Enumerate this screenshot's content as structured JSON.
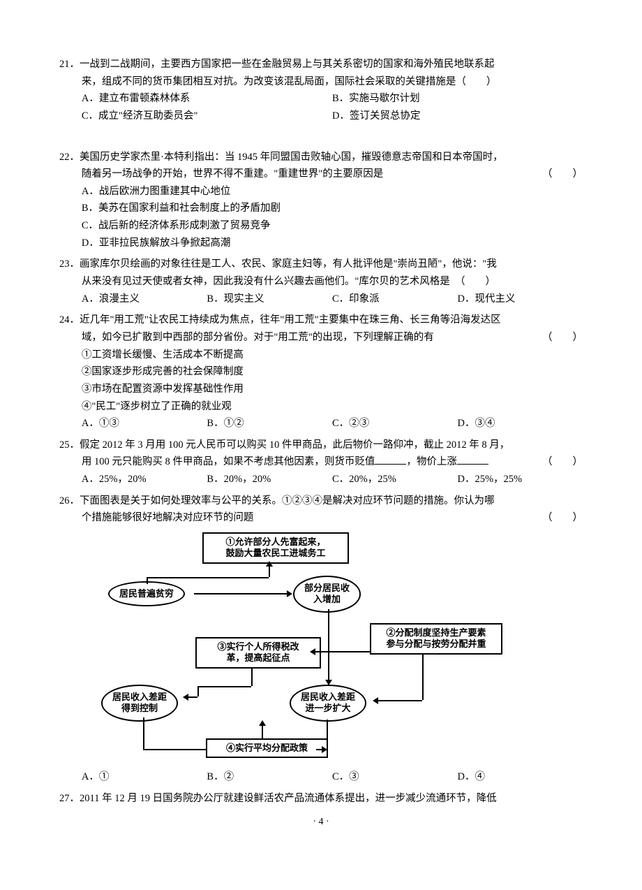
{
  "q21": {
    "num": "21．",
    "stem1": "一战到二战期间，主要西方国家把一些在金融贸易上与其关系密切的国家和海外殖民地联系起",
    "stem2": "来，组成不同的货币集团相互对抗。为改变该混乱局面，国际社会采取的关键措施是（　　）",
    "A": "A．建立布雷顿森林体系",
    "B": "B．实施马歇尔计划",
    "C": "C．成立\"经济互助委员会\"",
    "D": "D．签订关贸总协定"
  },
  "q22": {
    "num": "22．",
    "stem1": "美国历史学家杰里·本特利指出：当 1945 年同盟国击败轴心国，摧毁德意志帝国和日本帝国时，",
    "stem2": "随着另一场战争的开始，世界不得不重建。\"重建世界\"的主要原因是",
    "paren": "（　　）",
    "A": "A．战后欧洲力图重建其中心地位",
    "B": "B．美苏在国家利益和社会制度上的矛盾加剧",
    "C": "C．战后新的经济体系形成刺激了贸易竞争",
    "D": "D．亚非拉民族解放斗争掀起高潮"
  },
  "q23": {
    "num": "23．",
    "stem1": "画家库尔贝绘画的对象往往是工人、农民、家庭主妇等，有人批评他是\"崇尚丑陋\"，他说：\"我",
    "stem2": "从来没有见过天使或者女神，因此我没有什么兴趣去画他们。\"库尔贝的艺术风格是　（　　）",
    "A": "A．浪漫主义",
    "B": "B．现实主义",
    "C": "C．印象派",
    "D": "D．现代主义"
  },
  "q24": {
    "num": "24．",
    "stem1": "近几年\"用工荒\"让农民工持续成为焦点，往年\"用工荒\"主要集中在珠三角、长三角等沿海发达区",
    "stem2": "域，如今已扩散到中西部的部分省份。对于\"用工荒\"的出现，下列理解正确的有",
    "paren": "（　　）",
    "s1": "①工资增长缓慢、生活成本不断提高",
    "s2": "②国家逐步形成完善的社会保障制度",
    "s3": "③市场在配置资源中发挥基础性作用",
    "s4": "④\"民工\"逐步树立了正确的就业观",
    "A": "A．①③",
    "B": "B．①②",
    "C": "C．②③",
    "D": "D．③④"
  },
  "q25": {
    "num": "25．",
    "stem1": "假定 2012 年 3 月用 100 元人民币可以购买 10 件甲商品，此后物价一路仰冲，截止 2012 年 8 月，",
    "stem2a": "用 100 元只能购买 8 件甲商品，如果不考虑其他因素，则货币贬值",
    "stem2b": "，物价上涨",
    "paren": "（　　）",
    "A": "A．25%，20%",
    "B": "B．20%，20%",
    "C": "C．20%，25%",
    "D": "D．25%，25%"
  },
  "q26": {
    "num": "26．",
    "stem1": "下面图表是关于如何处理效率与公平的关系。①②③④是解决对应环节问题的措施。你认为哪",
    "stem2": "个措施能够很好地解决对应环节的问题",
    "paren": "（　　）",
    "A": "A．①",
    "B": "B．②",
    "C": "C．③",
    "D": "D．④",
    "diagram": {
      "n1": "①允许部分人先富起来，\n鼓励大量农民工进城务工",
      "n2": "居民普遍贫穷",
      "n3": "部分居民收\n入增加",
      "n4": "②分配制度坚持生产要素\n参与分配与按劳分配并重",
      "n5": "③实行个人所得税改\n革，提高起征点",
      "n6": "居民收入差距\n得到控制",
      "n7": "居民收入差距\n进一步扩大",
      "n8": "④实行平均分配政策"
    }
  },
  "q27": {
    "num": "27．",
    "stem": "2011 年 12 月 19 日国务院办公厅就建设鲜活农产品流通体系提出，进一步减少流通环节，降低"
  },
  "footer": "· 4 ·"
}
